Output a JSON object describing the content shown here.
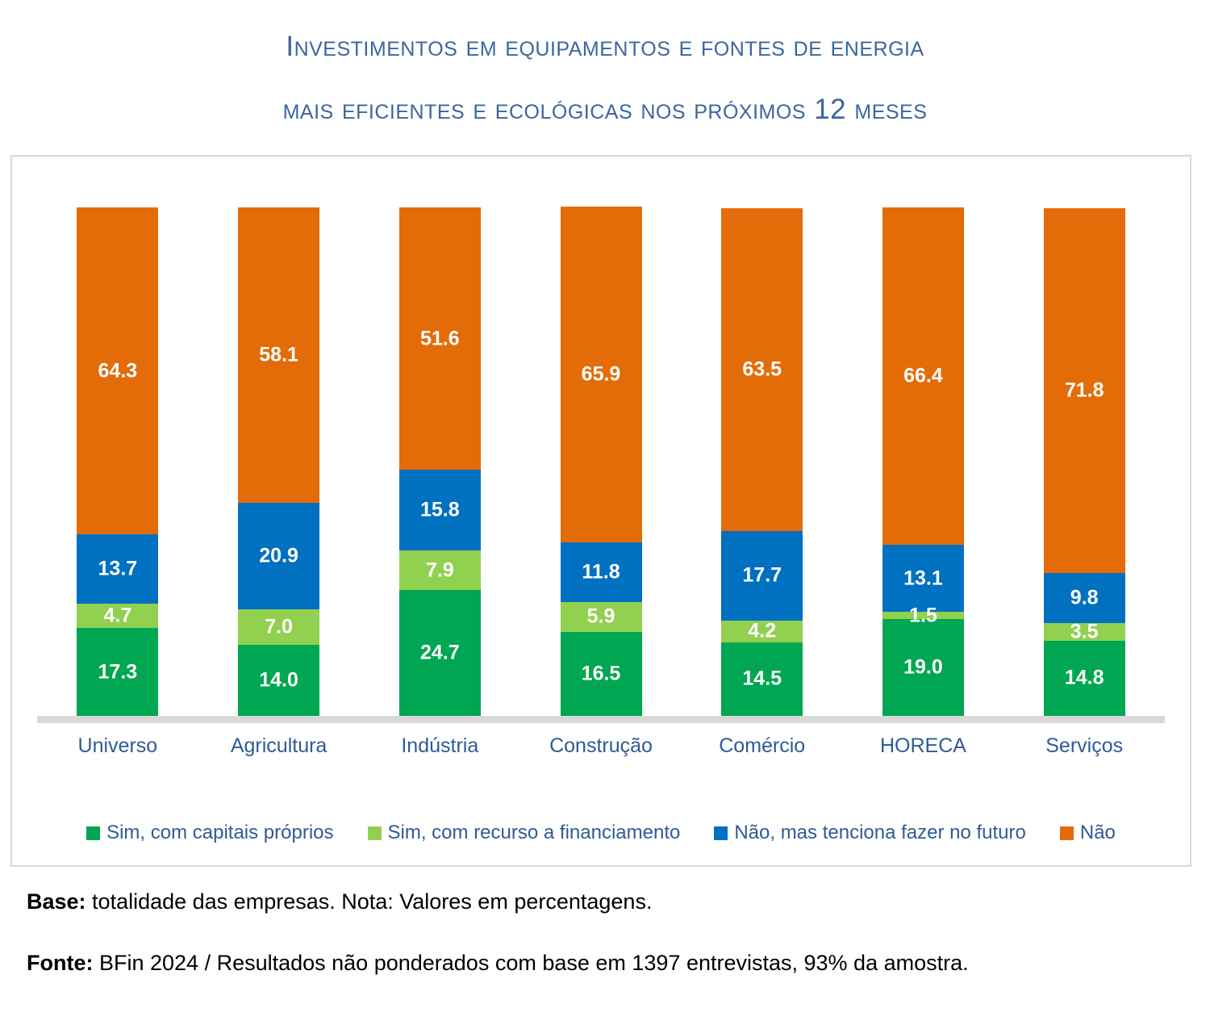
{
  "title": {
    "line1": "Investimentos em equipamentos e fontes de energia",
    "line2": "mais eficientes e ecológicas nos próximos 12 meses"
  },
  "chart_data": {
    "type": "bar",
    "subtype": "stacked-100-percent",
    "orientation": "vertical",
    "unit": "percent",
    "title": "Investimentos em equipamentos e fontes de energia mais eficientes e ecológicas nos próximos 12 meses",
    "xlabel": "",
    "ylabel": "",
    "ylim": [
      0,
      100
    ],
    "grid": false,
    "legend_position": "bottom",
    "value_labels": "inside, white bold, one decimal",
    "categories": [
      "Universo",
      "Agricultura",
      "Indústria",
      "Construção",
      "Comércio",
      "HORECA",
      "Serviços"
    ],
    "series": [
      {
        "name": "Sim, com capitais próprios",
        "color": "#00A651",
        "values": [
          17.3,
          14.0,
          24.7,
          16.5,
          14.5,
          19.0,
          14.8
        ]
      },
      {
        "name": "Sim, com recurso a financiamento",
        "color": "#92D050",
        "values": [
          4.7,
          7.0,
          7.9,
          5.9,
          4.2,
          1.5,
          3.5
        ]
      },
      {
        "name": "Não, mas tenciona fazer no futuro",
        "color": "#0070C0",
        "values": [
          13.7,
          20.9,
          15.8,
          11.8,
          17.7,
          13.1,
          9.8
        ]
      },
      {
        "name": "Não",
        "color": "#E36C09",
        "values": [
          64.3,
          58.1,
          51.6,
          65.9,
          63.5,
          66.4,
          71.8
        ]
      }
    ]
  },
  "footer": {
    "base_label": "Base:",
    "base_text": " totalidade das empresas. Nota: Valores em percentagens.",
    "fonte_label": "Fonte:",
    "fonte_text": " BFin 2024 / Resultados não ponderados com base em 1397 entrevistas, 93% da amostra."
  },
  "colors": {
    "title_text": "#3A679D",
    "axis_label_text": "#2F5B95",
    "legend_text": "#2F5B95",
    "baseline": "#D9D9D9",
    "chart_border": "#D9D9D9",
    "value_label_text": "#FFFFFF"
  }
}
